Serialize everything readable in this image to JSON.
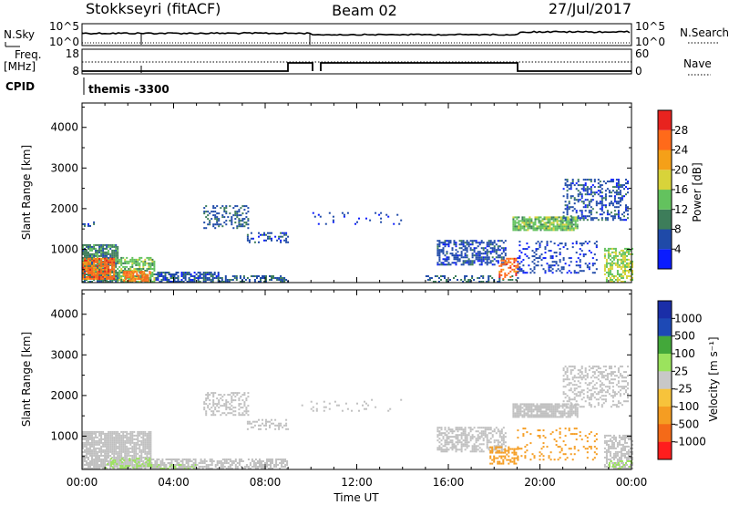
{
  "header": {
    "station": "Stokkseyri (fitACF)",
    "beam": "Beam 02",
    "date": "27/Jul/2017"
  },
  "top_panels": {
    "nsky_label": "N.Sky",
    "nsky_ticks": [
      "10^5",
      "10^0"
    ],
    "nsearch_label": "N.Search",
    "nsearch_ticks": [
      "10^5",
      "10^0"
    ],
    "freq_label_1": "Freq.",
    "freq_label_2": "[MHz]",
    "freq_ticks": [
      "18",
      "8"
    ],
    "nave_label": "Nave",
    "nave_ticks": [
      "60",
      "0"
    ],
    "cpid_label": "CPID",
    "cpid_name": "themis -3300"
  },
  "colors": {
    "power_scale": [
      "#0a1cff",
      "#1f4aa8",
      "#3d7d5a",
      "#63c25e",
      "#d8d33a",
      "#f5a018",
      "#ff6a1a",
      "#e8231f"
    ],
    "velocity_scale": [
      "#ff1d1d",
      "#f46a18",
      "#f59d22",
      "#f7c33b",
      "#c8c8c8",
      "#9be35d",
      "#43a83a",
      "#1d49b5",
      "#1a2ea8"
    ],
    "ground_scatter": "#c0c0c0"
  },
  "chart_data": [
    {
      "type": "heatmap",
      "name": "power",
      "xlabel": "",
      "ylabel": "Slant Range [km]",
      "ylim": [
        180,
        4600
      ],
      "x_ticks": [
        "00:00",
        "04:00",
        "08:00",
        "12:00",
        "16:00",
        "20:00",
        "00:00"
      ],
      "y_ticks": [
        1000,
        2000,
        3000,
        4000
      ],
      "colorbar_label": "Power [dB]",
      "colorbar_ticks": [
        4,
        8,
        12,
        16,
        20,
        24,
        28
      ],
      "zlim": [
        0,
        32
      ],
      "regions": [
        {
          "t0": 0.0,
          "t1": 1.6,
          "r0": 180,
          "r1": 1100,
          "v": 10,
          "density": 0.85
        },
        {
          "t0": 0.0,
          "t1": 1.4,
          "r0": 250,
          "r1": 750,
          "v": 26,
          "density": 0.8
        },
        {
          "t0": 1.6,
          "t1": 3.2,
          "r0": 180,
          "r1": 800,
          "v": 14,
          "density": 0.7
        },
        {
          "t0": 1.8,
          "t1": 3.0,
          "r0": 200,
          "r1": 450,
          "v": 25,
          "density": 0.7
        },
        {
          "t0": 3.2,
          "t1": 6.0,
          "r0": 180,
          "r1": 450,
          "v": 6,
          "density": 0.75
        },
        {
          "t0": 6.0,
          "t1": 9.0,
          "r0": 180,
          "r1": 320,
          "v": 7,
          "density": 0.5
        },
        {
          "t0": 0.0,
          "t1": 0.5,
          "r0": 1550,
          "r1": 1650,
          "v": 6,
          "density": 0.6
        },
        {
          "t0": 5.3,
          "t1": 7.3,
          "r0": 1500,
          "r1": 2050,
          "v": 7,
          "density": 0.35
        },
        {
          "t0": 7.2,
          "t1": 9.0,
          "r0": 1150,
          "r1": 1400,
          "v": 6,
          "density": 0.35
        },
        {
          "t0": 9.5,
          "t1": 14.0,
          "r0": 1600,
          "r1": 1900,
          "v": 5,
          "density": 0.08
        },
        {
          "t0": 15.5,
          "t1": 18.5,
          "r0": 600,
          "r1": 1200,
          "v": 6,
          "density": 0.55
        },
        {
          "t0": 15.0,
          "t1": 19.0,
          "r0": 180,
          "r1": 330,
          "v": 8,
          "density": 0.35
        },
        {
          "t0": 18.2,
          "t1": 19.0,
          "r0": 250,
          "r1": 750,
          "v": 26,
          "density": 0.4
        },
        {
          "t0": 18.8,
          "t1": 21.6,
          "r0": 1450,
          "r1": 1800,
          "v": 14,
          "density": 0.8
        },
        {
          "t0": 21.0,
          "t1": 23.8,
          "r0": 1700,
          "r1": 2700,
          "v": 6,
          "density": 0.35
        },
        {
          "t0": 19.0,
          "t1": 22.5,
          "r0": 400,
          "r1": 1200,
          "v": 5,
          "density": 0.25
        },
        {
          "t0": 22.8,
          "t1": 24.0,
          "r0": 180,
          "r1": 1000,
          "v": 16,
          "density": 0.6
        }
      ]
    },
    {
      "type": "heatmap",
      "name": "velocity",
      "xlabel": "Time UT",
      "ylabel": "Slant Range [km]",
      "ylim": [
        180,
        4600
      ],
      "x_ticks": [
        "00:00",
        "04:00",
        "08:00",
        "12:00",
        "16:00",
        "20:00",
        "00:00"
      ],
      "y_ticks": [
        1000,
        2000,
        3000,
        4000
      ],
      "colorbar_label": "Velocity [m s⁻¹]",
      "colorbar_ticks": [
        "1000",
        "500",
        "100",
        "25",
        "-25",
        "-100",
        "-500",
        "-1000"
      ],
      "regions": [
        {
          "t0": 0.0,
          "t1": 3.0,
          "r0": 180,
          "r1": 1100,
          "v": 0,
          "density": 0.85
        },
        {
          "t0": 1.0,
          "t1": 3.0,
          "r0": 200,
          "r1": 450,
          "v": 60,
          "density": 0.4
        },
        {
          "t0": 3.0,
          "t1": 5.0,
          "r0": 180,
          "r1": 300,
          "v": 60,
          "density": 0.6
        },
        {
          "t0": 3.0,
          "t1": 9.0,
          "r0": 180,
          "r1": 450,
          "v": 0,
          "density": 0.6
        },
        {
          "t0": 5.3,
          "t1": 7.3,
          "r0": 1500,
          "r1": 2050,
          "v": 0,
          "density": 0.4
        },
        {
          "t0": 7.2,
          "t1": 9.0,
          "r0": 1150,
          "r1": 1400,
          "v": 0,
          "density": 0.35
        },
        {
          "t0": 9.5,
          "t1": 14.0,
          "r0": 1600,
          "r1": 1900,
          "v": 0,
          "density": 0.08
        },
        {
          "t0": 15.5,
          "t1": 18.5,
          "r0": 600,
          "r1": 1200,
          "v": 0,
          "density": 0.55
        },
        {
          "t0": 17.8,
          "t1": 19.0,
          "r0": 300,
          "r1": 750,
          "v": -80,
          "density": 0.55
        },
        {
          "t0": 18.8,
          "t1": 21.6,
          "r0": 1450,
          "r1": 1800,
          "v": 0,
          "density": 0.85
        },
        {
          "t0": 21.0,
          "t1": 23.8,
          "r0": 1700,
          "r1": 2700,
          "v": 0,
          "density": 0.35
        },
        {
          "t0": 19.0,
          "t1": 22.5,
          "r0": 400,
          "r1": 1200,
          "v": -60,
          "density": 0.15
        },
        {
          "t0": 22.8,
          "t1": 24.0,
          "r0": 180,
          "r1": 1000,
          "v": 0,
          "density": 0.6
        },
        {
          "t0": 23.0,
          "t1": 24.0,
          "r0": 180,
          "r1": 400,
          "v": 80,
          "density": 0.3
        }
      ]
    }
  ]
}
